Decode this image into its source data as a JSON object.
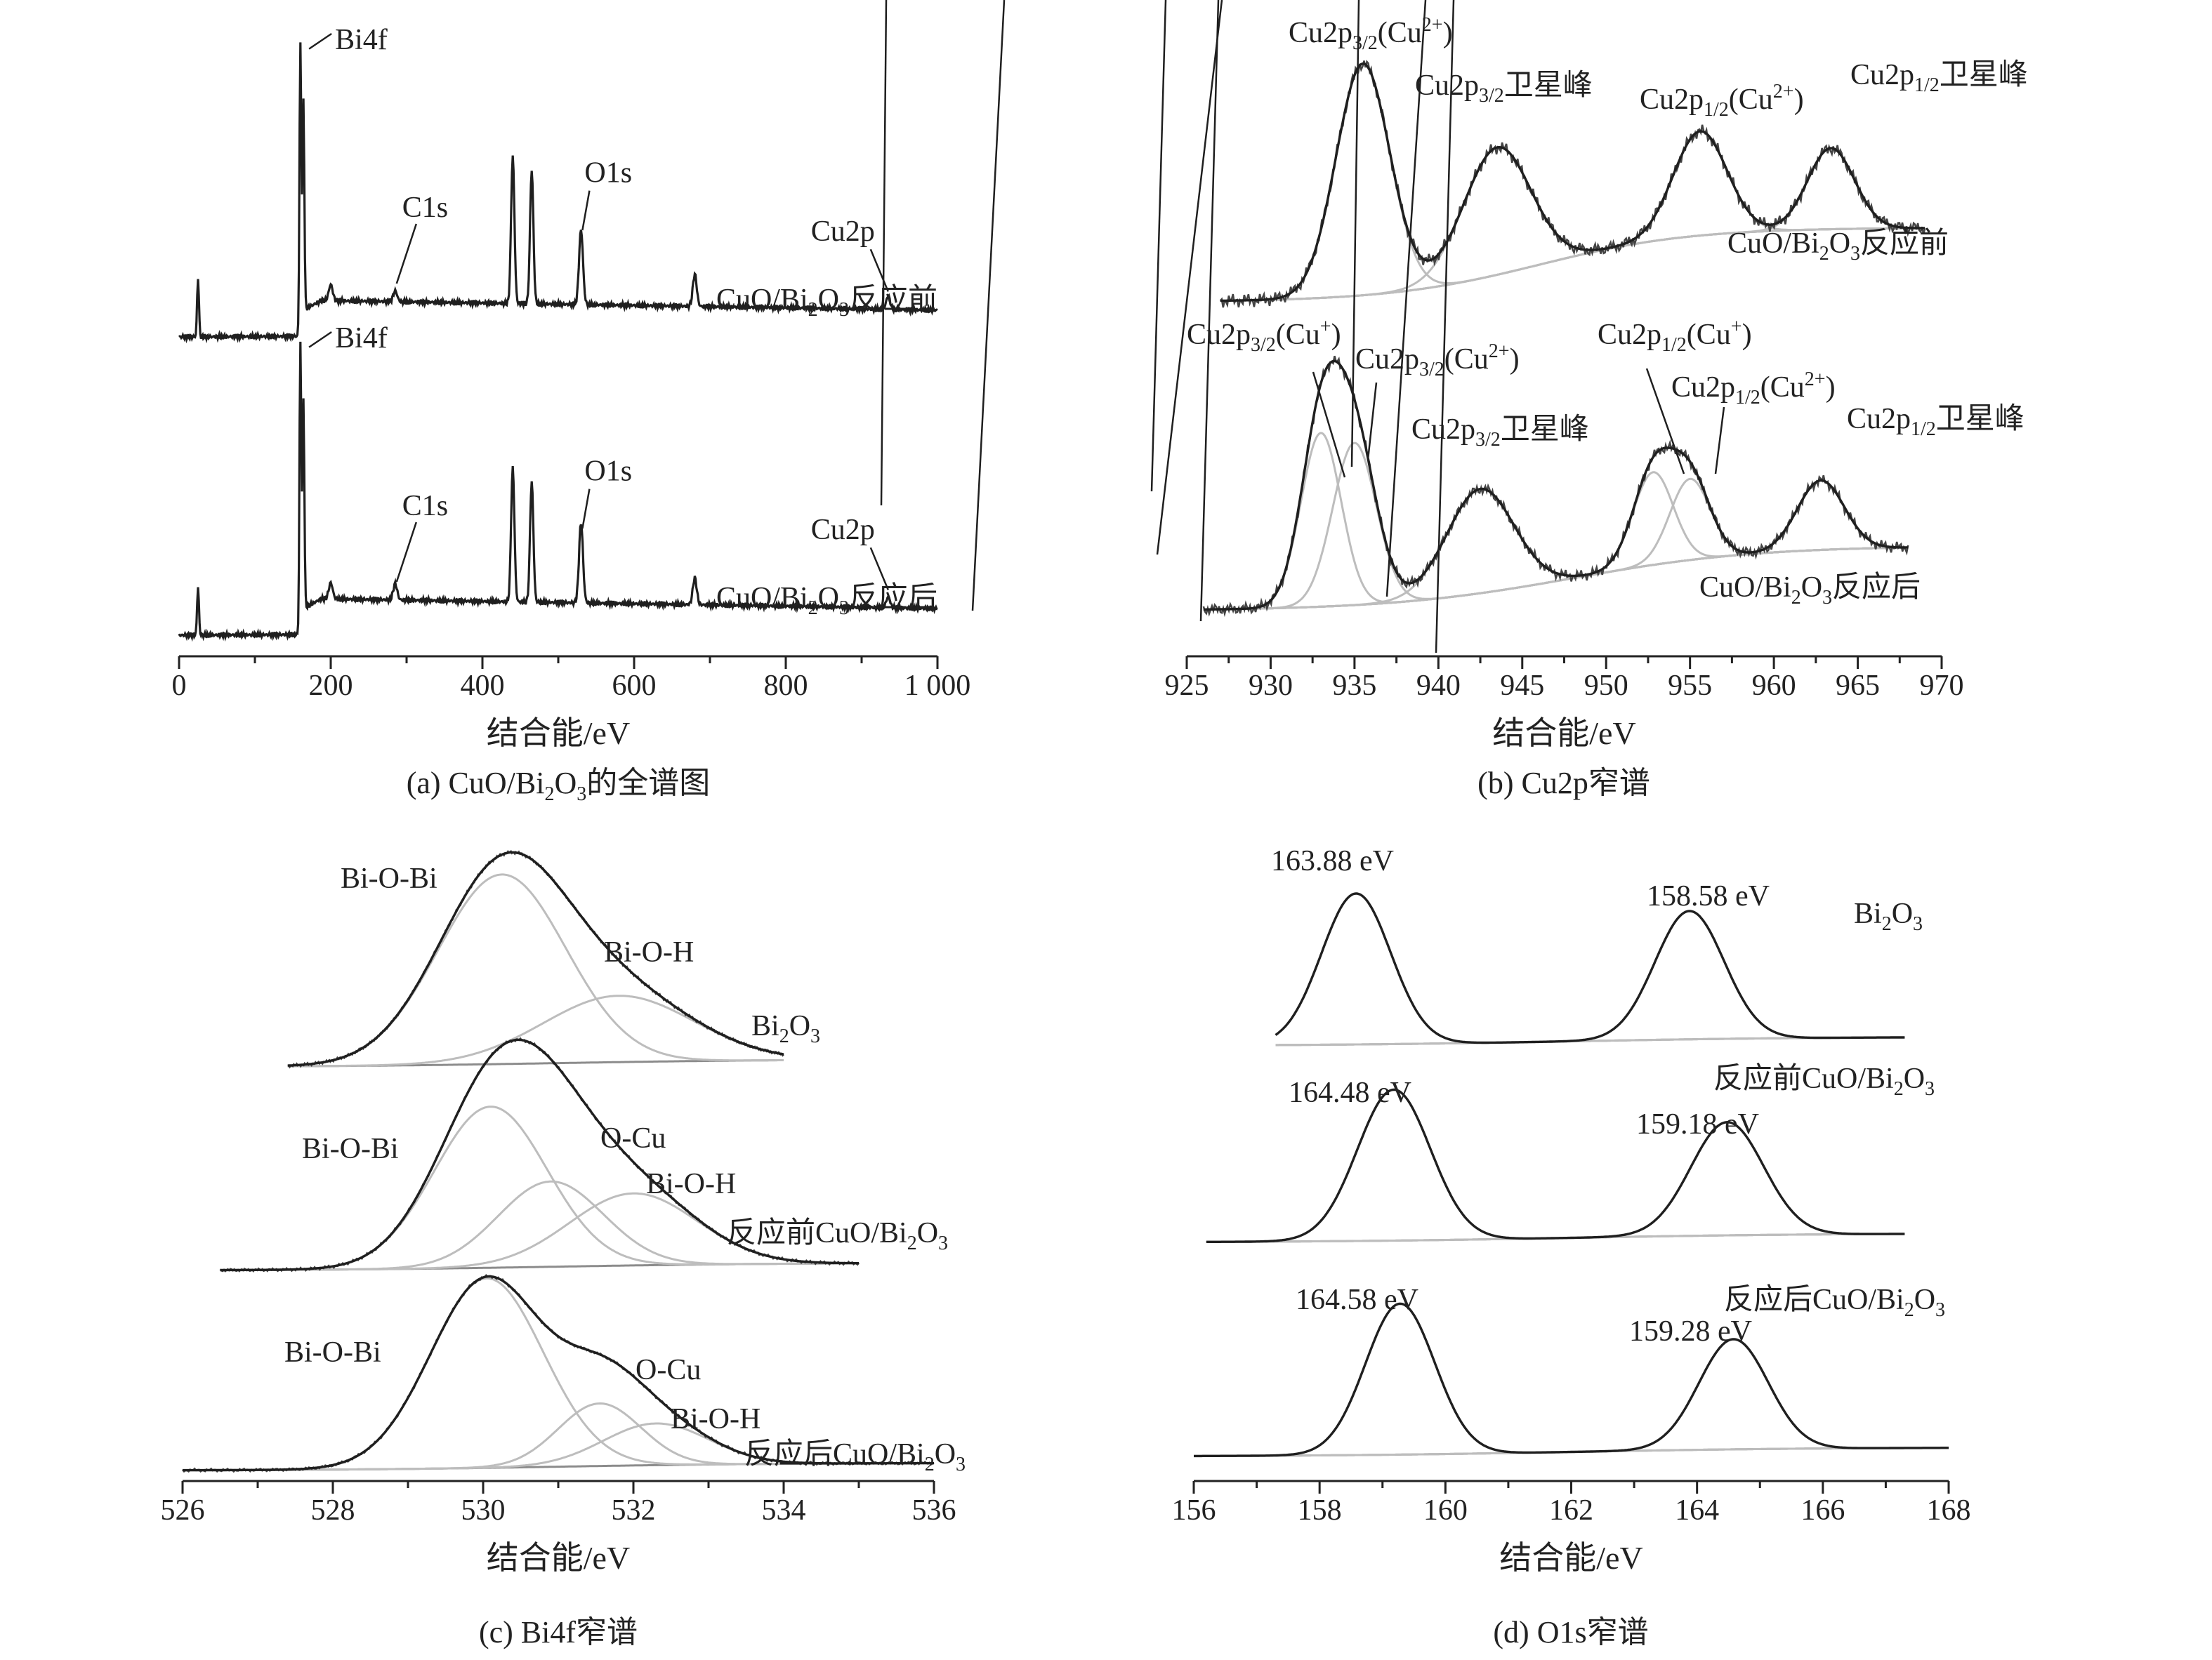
{
  "colors": {
    "data": "#1f1f1f",
    "component": "#bdbdbd",
    "background_line": "#8c8c8c"
  },
  "chart_data": [
    {
      "id": "a",
      "type": "line",
      "caption": [
        "(a) CuO/Bi",
        "2",
        "O",
        "3",
        "的全谱图"
      ],
      "xlabel": "结合能/eV",
      "xlim": [
        0,
        1000
      ],
      "x_ticks": [
        "0",
        "200",
        "400",
        "600",
        "800",
        "1 000"
      ],
      "y_axis_shown": false,
      "series": [
        {
          "label": [
            "CuO/Bi",
            "2",
            "O",
            "3",
            "反应前"
          ],
          "peaks": [
            {
              "x": 25,
              "h": 0.22
            },
            {
              "x": 160,
              "h": 1.0
            },
            {
              "x": 164,
              "h": 0.78
            },
            {
              "x": 200,
              "h": 0.06
            },
            {
              "x": 285,
              "h": 0.04
            },
            {
              "x": 440,
              "h": 0.55
            },
            {
              "x": 465,
              "h": 0.5
            },
            {
              "x": 530,
              "h": 0.28
            },
            {
              "x": 680,
              "h": 0.12
            },
            {
              "x": 935,
              "h": 0.05
            }
          ]
        },
        {
          "label": [
            "CuO/Bi",
            "2",
            "O",
            "3",
            "反应后"
          ],
          "peaks": [
            {
              "x": 25,
              "h": 0.18
            },
            {
              "x": 160,
              "h": 1.0
            },
            {
              "x": 164,
              "h": 0.78
            },
            {
              "x": 200,
              "h": 0.06
            },
            {
              "x": 285,
              "h": 0.06
            },
            {
              "x": 440,
              "h": 0.5
            },
            {
              "x": 465,
              "h": 0.45
            },
            {
              "x": 530,
              "h": 0.3
            },
            {
              "x": 680,
              "h": 0.1
            },
            {
              "x": 935,
              "h": 0.04
            }
          ]
        }
      ],
      "annotations": [
        {
          "series": 0,
          "text": "Bi4f",
          "at_x": 164
        },
        {
          "series": 0,
          "text": "C1s",
          "at_x": 285
        },
        {
          "series": 0,
          "text": "O1s",
          "at_x": 530
        },
        {
          "series": 0,
          "text": "Cu2p",
          "at_x": 935
        },
        {
          "series": 1,
          "text": "Bi4f",
          "at_x": 164
        },
        {
          "series": 1,
          "text": "C1s",
          "at_x": 285
        },
        {
          "series": 1,
          "text": "O1s",
          "at_x": 530
        },
        {
          "series": 1,
          "text": "Cu2p",
          "at_x": 935
        }
      ]
    },
    {
      "id": "b",
      "type": "line",
      "caption": [
        "(b) Cu2p窄谱"
      ],
      "xlabel": "结合能/eV",
      "xlim": [
        925,
        970
      ],
      "x_ticks": [
        "925",
        "930",
        "935",
        "940",
        "945",
        "950",
        "955",
        "960",
        "965",
        "970"
      ],
      "y_axis_shown": false,
      "series": [
        {
          "label": [
            "CuO/Bi",
            "2",
            "O",
            "3",
            "反应前"
          ],
          "components": [
            {
              "x": 935.5,
              "h": 1.0,
              "w": 1.6
            },
            {
              "x": 943.5,
              "h": 0.55,
              "w": 2.0
            },
            {
              "x": 955.6,
              "h": 0.45,
              "w": 1.6
            },
            {
              "x": 963.4,
              "h": 0.35,
              "w": 1.4
            }
          ]
        },
        {
          "label": [
            "CuO/Bi",
            "2",
            "O",
            "3",
            "反应后"
          ],
          "components": [
            {
              "x": 933.0,
              "h": 0.75,
              "w": 1.2
            },
            {
              "x": 935.0,
              "h": 0.7,
              "w": 1.3
            },
            {
              "x": 942.5,
              "h": 0.45,
              "w": 2.0
            },
            {
              "x": 952.8,
              "h": 0.4,
              "w": 1.2
            },
            {
              "x": 955.0,
              "h": 0.35,
              "w": 1.2
            },
            {
              "x": 962.8,
              "h": 0.3,
              "w": 1.4
            }
          ]
        }
      ],
      "annotations": [
        {
          "series": 0,
          "text": [
            "Cu2p",
            "3/2",
            "(Cu",
            "2+",
            ")"
          ]
        },
        {
          "series": 0,
          "text": [
            "Cu2p",
            "3/2",
            "卫星峰"
          ]
        },
        {
          "series": 0,
          "text": [
            "Cu2p",
            "1/2",
            "(Cu",
            "2+",
            ")"
          ]
        },
        {
          "series": 0,
          "text": [
            "Cu2p",
            "1/2",
            "卫星峰"
          ]
        },
        {
          "series": 1,
          "text": [
            "Cu2p",
            "3/2",
            "(Cu",
            "+",
            ")"
          ]
        },
        {
          "series": 1,
          "text": [
            "Cu2p",
            "3/2",
            "(Cu",
            "2+",
            ")"
          ]
        },
        {
          "series": 1,
          "text": [
            "Cu2p",
            "3/2",
            "卫星峰"
          ]
        },
        {
          "series": 1,
          "text": [
            "Cu2p",
            "1/2",
            "(Cu",
            "+",
            ")"
          ]
        },
        {
          "series": 1,
          "text": [
            "Cu2p",
            "1/2",
            "(Cu",
            "2+",
            ")"
          ]
        },
        {
          "series": 1,
          "text": [
            "Cu2p",
            "1/2",
            "卫星峰"
          ]
        }
      ]
    },
    {
      "id": "c",
      "type": "line",
      "caption": [
        "(c) Bi4f窄谱"
      ],
      "xlabel": "结合能/eV",
      "xlim": [
        526,
        536
      ],
      "x_ticks": [
        "526",
        "528",
        "530",
        "532",
        "534",
        "536"
      ],
      "y_axis_shown": false,
      "series": [
        {
          "label": [
            "Bi",
            "2",
            "O",
            "3"
          ],
          "components": [
            {
              "name": "Bi-O-Bi",
              "x": 530.25,
              "h": 1.0,
              "w": 0.85
            },
            {
              "name": "Bi-O-H",
              "x": 531.8,
              "h": 0.35,
              "w": 1.0
            }
          ]
        },
        {
          "label": [
            "反应前CuO/Bi",
            "2",
            "O",
            "3"
          ],
          "components": [
            {
              "name": "Bi-O-Bi",
              "x": 530.1,
              "h": 0.85,
              "w": 0.75
            },
            {
              "name": "O-Cu",
              "x": 530.9,
              "h": 0.45,
              "w": 0.7
            },
            {
              "name": "Bi-O-H",
              "x": 532.0,
              "h": 0.38,
              "w": 0.85
            }
          ]
        },
        {
          "label": [
            "反应后CuO/Bi",
            "2",
            "O",
            "3"
          ],
          "components": [
            {
              "name": "Bi-O-Bi",
              "x": 530.05,
              "h": 1.0,
              "w": 0.75
            },
            {
              "name": "O-Cu",
              "x": 531.55,
              "h": 0.33,
              "w": 0.55
            },
            {
              "name": "Bi-O-H",
              "x": 532.3,
              "h": 0.22,
              "w": 0.7
            }
          ]
        }
      ]
    },
    {
      "id": "d",
      "type": "line",
      "caption": [
        "(d) O1s窄谱"
      ],
      "xlabel": "结合能/eV",
      "xlim": [
        156,
        168
      ],
      "x_ticks": [
        "156",
        "158",
        "160",
        "162",
        "164",
        "166",
        "168"
      ],
      "y_axis_shown": false,
      "series": [
        {
          "label": [
            "Bi",
            "2",
            "O",
            "3"
          ],
          "components": [
            {
              "x": 158.58,
              "h": 1.0,
              "w": 0.55
            },
            {
              "x": 163.88,
              "h": 0.85,
              "w": 0.55
            }
          ],
          "peak_labels": [
            "163.88 eV",
            "158.58 eV"
          ]
        },
        {
          "label": [
            "反应前CuO/Bi",
            "2",
            "O",
            "3"
          ],
          "components": [
            {
              "x": 159.18,
              "h": 1.0,
              "w": 0.58
            },
            {
              "x": 164.48,
              "h": 0.75,
              "w": 0.58
            }
          ],
          "peak_labels": [
            "164.48 eV",
            "159.18 eV"
          ]
        },
        {
          "label": [
            "反应后CuO/Bi",
            "2",
            "O",
            "3"
          ],
          "components": [
            {
              "x": 159.28,
              "h": 1.0,
              "w": 0.55
            },
            {
              "x": 164.58,
              "h": 0.73,
              "w": 0.55
            }
          ],
          "peak_labels": [
            "164.58 eV",
            "159.28 eV"
          ]
        }
      ]
    }
  ]
}
